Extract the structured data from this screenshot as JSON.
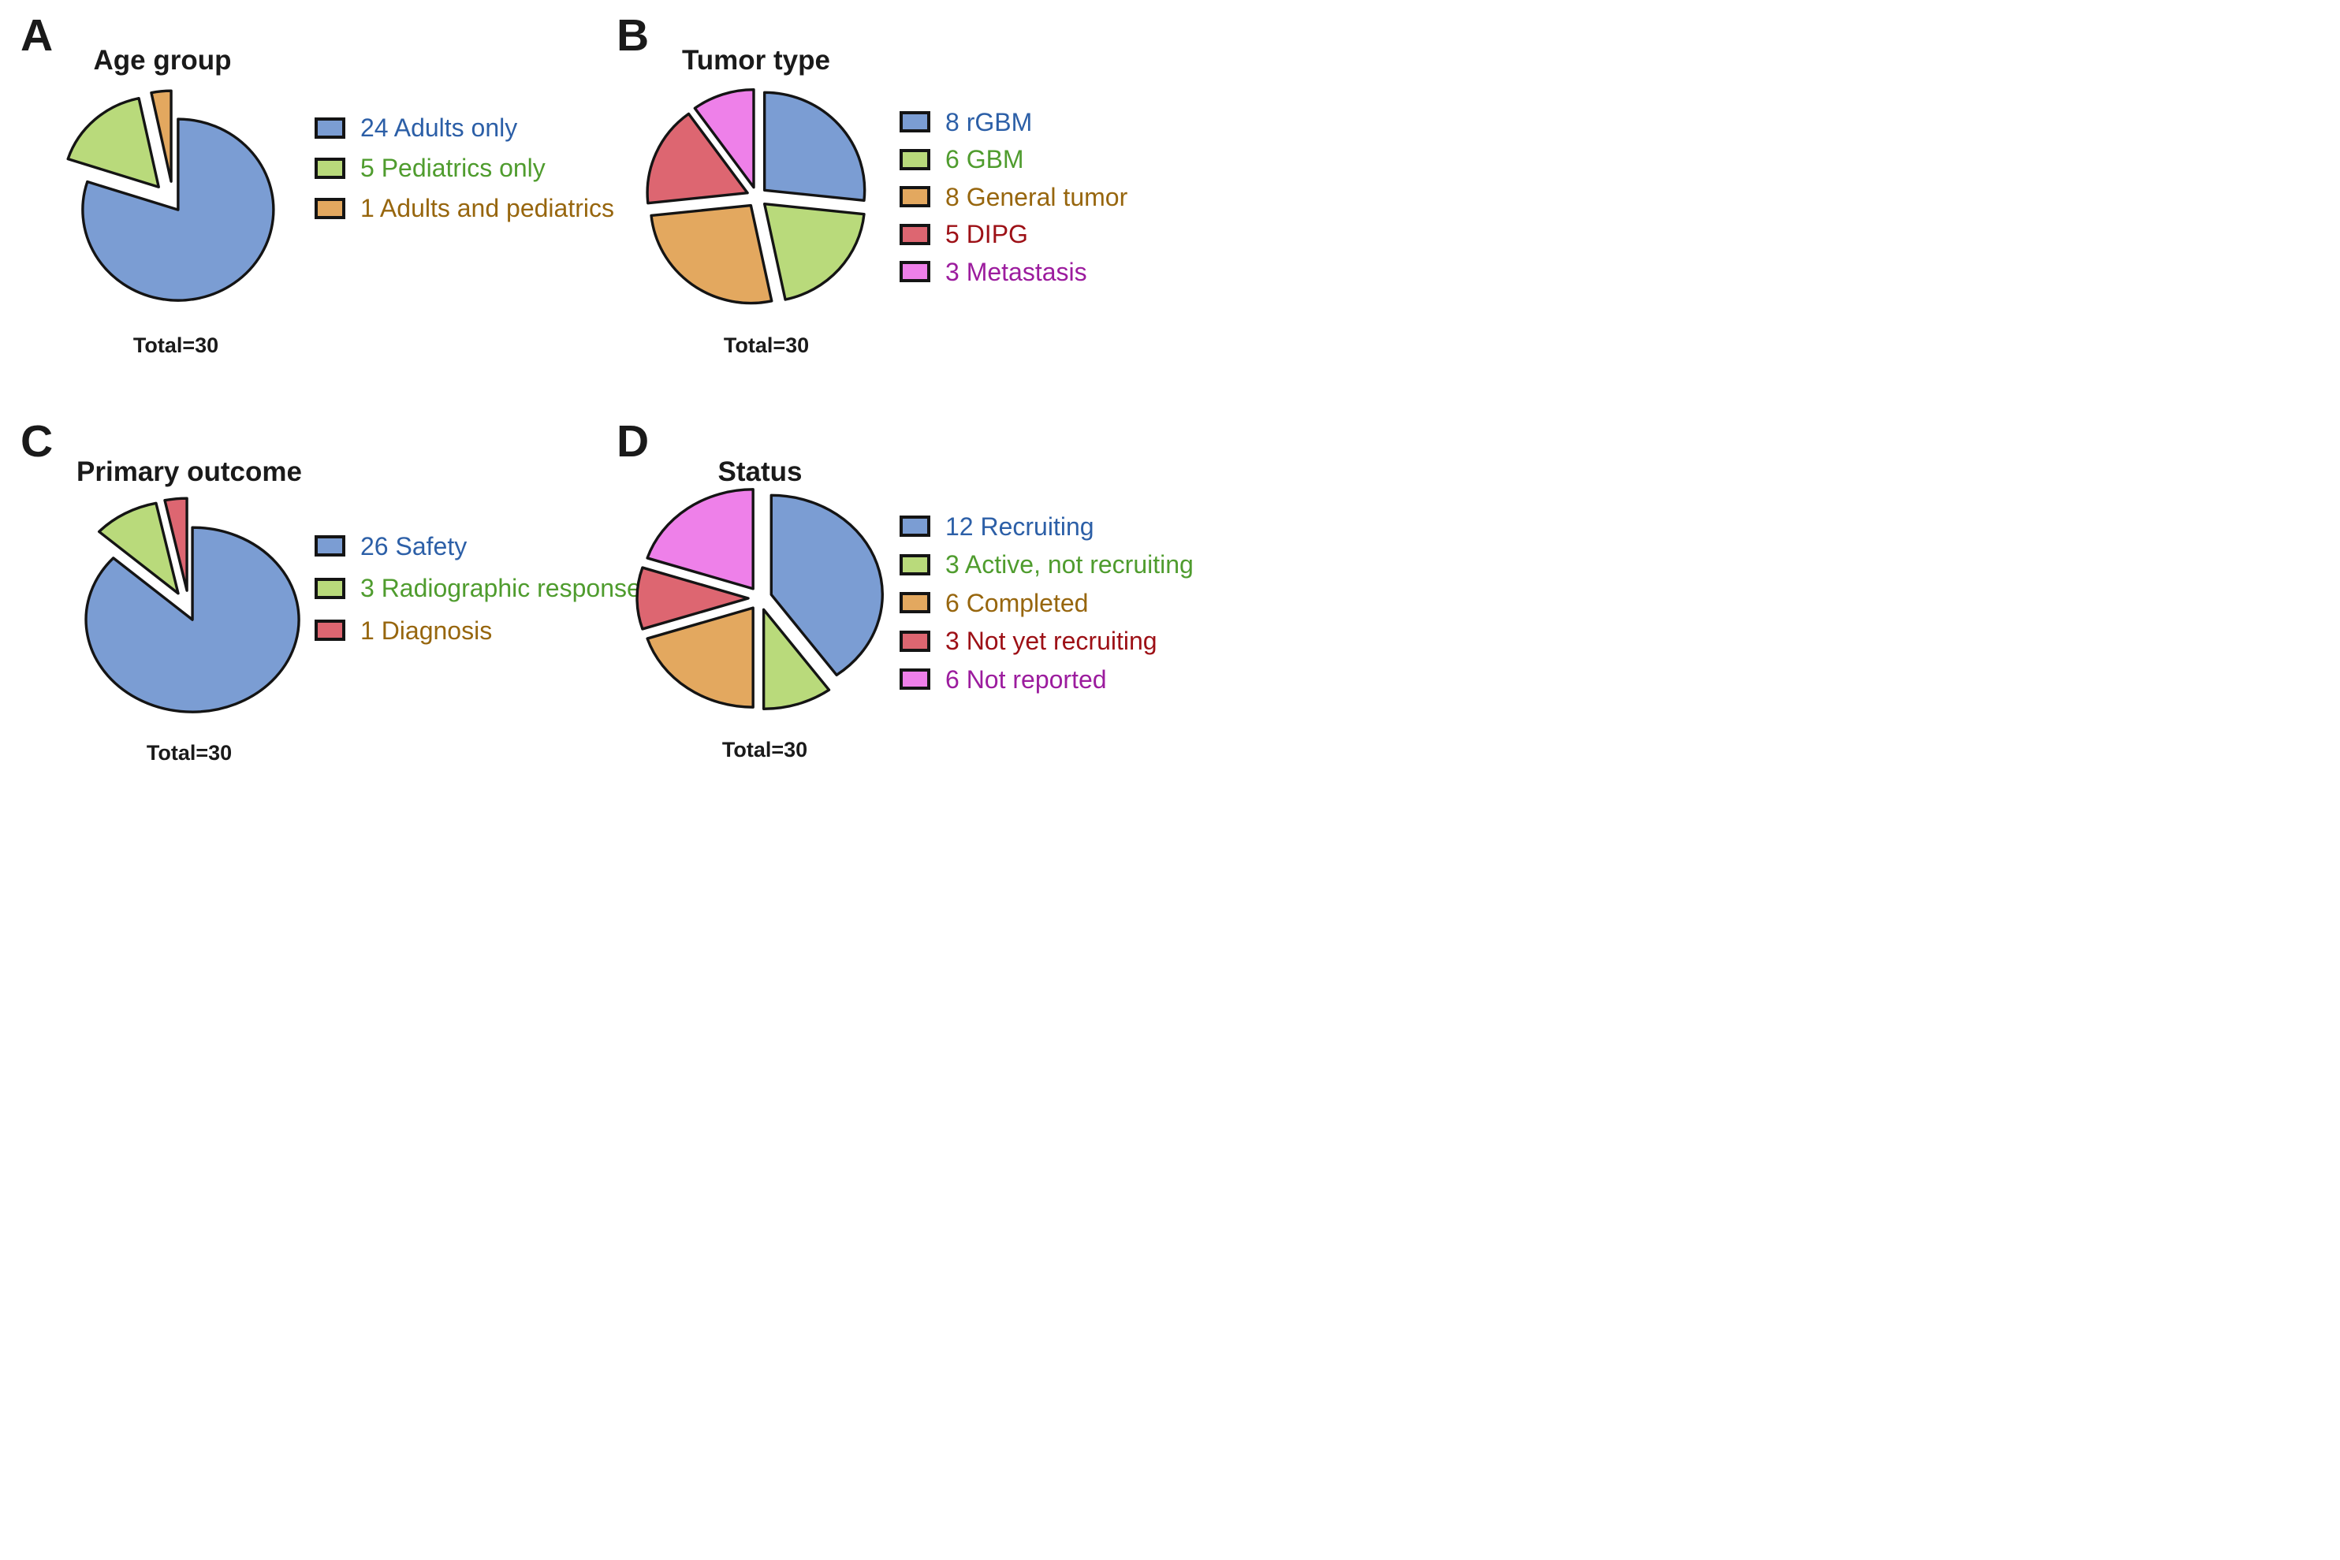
{
  "figure": {
    "background_color": "#ffffff",
    "outline_color": "#141414",
    "palette": {
      "blue": "#7b9dd3",
      "green": "#b9da7b",
      "orange": "#e3a85f",
      "red": "#dd6671",
      "magenta": "#ee80e9"
    }
  },
  "chart_data": [
    {
      "type": "pie",
      "panel_letter": "A",
      "title": "Age group",
      "total": 30,
      "total_label": "Total=30",
      "start_angle_deg": 0,
      "direction": "clockwise",
      "legend_position": "right",
      "slices": [
        {
          "value": 24,
          "label": "Adults only",
          "legend": "24 Adults only",
          "color": "#7b9dd3",
          "text_color": "#2c5fa7"
        },
        {
          "value": 5,
          "label": "Pediatrics only",
          "legend": "5 Pediatrics only",
          "color": "#b9da7b",
          "text_color": "#4f9c2e"
        },
        {
          "value": 1,
          "label": "Adults and pediatrics",
          "legend": "1 Adults and pediatrics",
          "color": "#e3a85f",
          "text_color": "#97660e"
        }
      ]
    },
    {
      "type": "pie",
      "panel_letter": "B",
      "title": "Tumor type",
      "total": 30,
      "total_label": "Total=30",
      "start_angle_deg": 0,
      "direction": "clockwise",
      "legend_position": "right",
      "slices": [
        {
          "value": 8,
          "label": "rGBM",
          "legend": "8 rGBM",
          "color": "#7b9dd3",
          "text_color": "#2c5fa7"
        },
        {
          "value": 6,
          "label": "GBM",
          "legend": "6 GBM",
          "color": "#b9da7b",
          "text_color": "#4f9c2e"
        },
        {
          "value": 8,
          "label": "General tumor",
          "legend": "8 General tumor",
          "color": "#e3a85f",
          "text_color": "#97660e"
        },
        {
          "value": 5,
          "label": "DIPG",
          "legend": "5 DIPG",
          "color": "#dd6671",
          "text_color": "#9d1016"
        },
        {
          "value": 3,
          "label": "Metastasis",
          "legend": "3 Metastasis",
          "color": "#ee80e9",
          "text_color": "#9c1c9e"
        }
      ]
    },
    {
      "type": "pie",
      "panel_letter": "C",
      "title": "Primary outcome",
      "total": 30,
      "total_label": "Total=30",
      "start_angle_deg": 0,
      "direction": "clockwise",
      "legend_position": "right",
      "slices": [
        {
          "value": 26,
          "label": "Safety",
          "legend": "26 Safety",
          "color": "#7b9dd3",
          "text_color": "#2c5fa7"
        },
        {
          "value": 3,
          "label": "Radiographic response",
          "legend": "3 Radiographic response",
          "color": "#b9da7b",
          "text_color": "#4f9c2e"
        },
        {
          "value": 1,
          "label": "Diagnosis",
          "legend": "1 Diagnosis",
          "color": "#dd6671",
          "text_color": "#97660e"
        }
      ]
    },
    {
      "type": "pie",
      "panel_letter": "D",
      "title": "Status",
      "total": 30,
      "total_label": "Total=30",
      "start_angle_deg": 0,
      "direction": "clockwise",
      "legend_position": "right",
      "slices": [
        {
          "value": 12,
          "label": "Recruiting",
          "legend": "12 Recruiting",
          "color": "#7b9dd3",
          "text_color": "#2c5fa7"
        },
        {
          "value": 3,
          "label": "Active, not recruiting",
          "legend": "3 Active, not recruiting",
          "color": "#b9da7b",
          "text_color": "#4f9c2e"
        },
        {
          "value": 6,
          "label": "Completed",
          "legend": "6 Completed",
          "color": "#e3a85f",
          "text_color": "#97660e"
        },
        {
          "value": 3,
          "label": "Not yet recruiting",
          "legend": "3 Not yet recruiting",
          "color": "#dd6671",
          "text_color": "#9d1016"
        },
        {
          "value": 6,
          "label": "Not reported",
          "legend": "6 Not reported",
          "color": "#ee80e9",
          "text_color": "#9c1c9e"
        }
      ]
    }
  ]
}
